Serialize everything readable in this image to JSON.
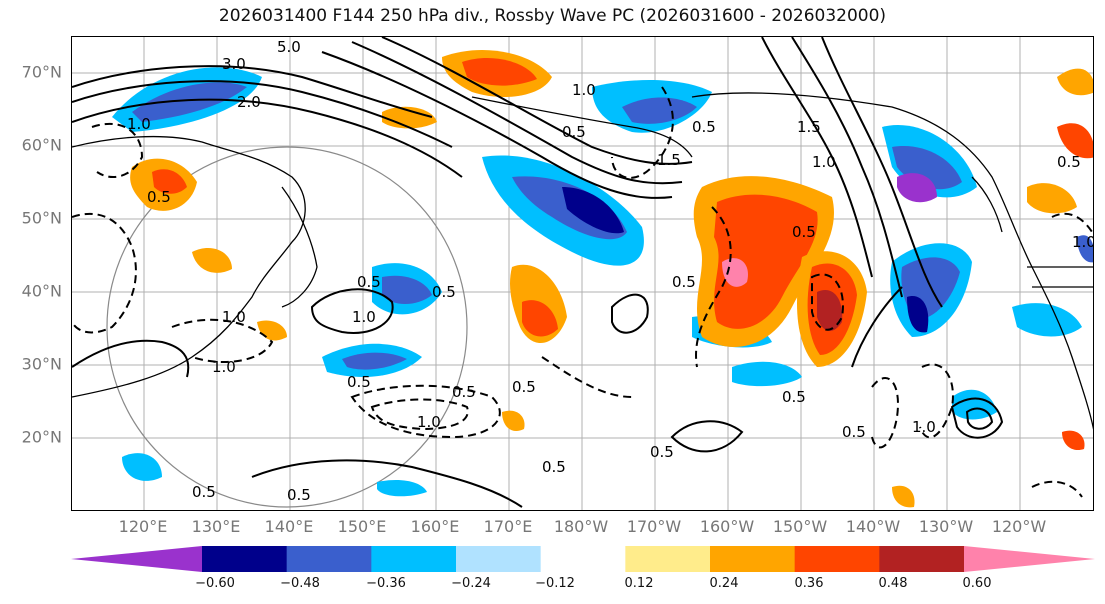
{
  "title": "2026031400 F144 250 hPa div., Rossby Wave PC (2026031600 - 2026032000)",
  "axes": {
    "lat_labels": [
      "70°N",
      "60°N",
      "50°N",
      "40°N",
      "30°N",
      "20°N"
    ],
    "lon_labels": [
      "120°E",
      "130°E",
      "140°E",
      "150°E",
      "160°E",
      "170°E",
      "180°W",
      "170°W",
      "160°W",
      "150°W",
      "140°W",
      "130°W",
      "120°W"
    ]
  },
  "colorbar": {
    "colors": [
      "#9a32cd",
      "#00008b",
      "#3a5fcd",
      "#00bfff",
      "#b0e2ff",
      "#ffffff",
      "#ffec8b",
      "#ffa500",
      "#ff4500",
      "#b22222",
      "#ff82ab"
    ],
    "ticks": [
      "−0.60",
      "−0.48",
      "−0.36",
      "−0.24",
      "−0.12",
      "0.12",
      "0.24",
      "0.36",
      "0.48",
      "0.60"
    ]
  },
  "contour_labels": [
    "5.0",
    "3.0",
    "2.0",
    "1.0",
    "0.5",
    "1.5",
    "0.5",
    "1.0",
    "0.5",
    "0.5",
    "0.5",
    "1.0",
    "1.0",
    "0.5",
    "1.0",
    "0.5",
    "0.5",
    "1.0",
    "0.5",
    "0.5",
    "0.5",
    "1.5",
    "1.0",
    "0.5",
    "0.5",
    "0.5",
    "0.5",
    "1.0",
    "0.5",
    "0.5",
    "1.0"
  ],
  "colors": {
    "accent": "#ff4500",
    "graticule": "#b0b0b0"
  }
}
